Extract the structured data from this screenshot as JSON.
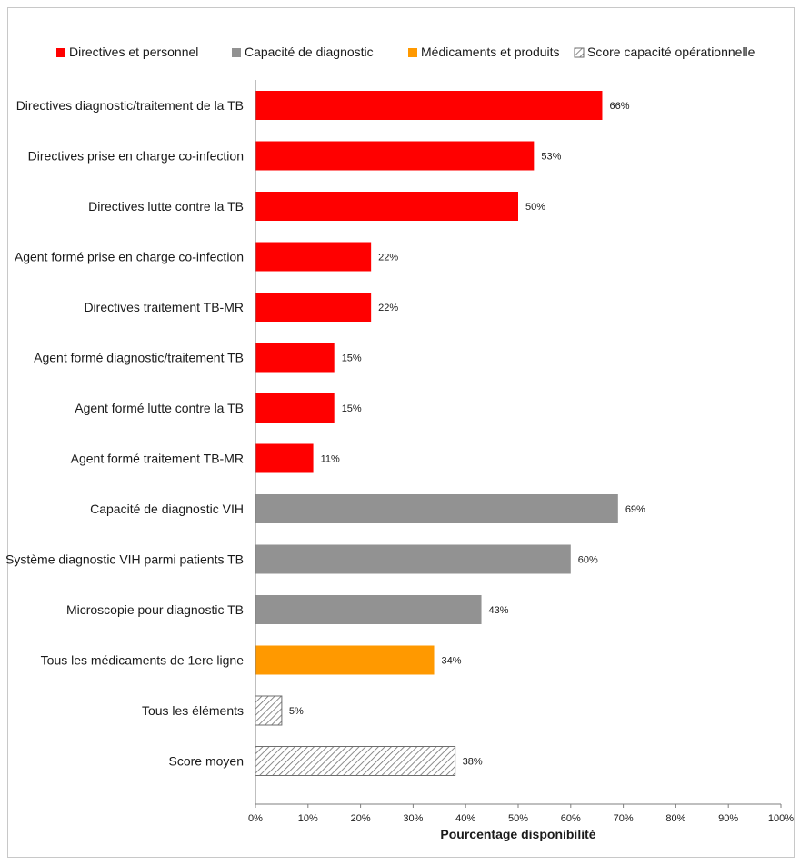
{
  "chart_data": {
    "type": "bar",
    "orientation": "horizontal",
    "xlabel": "Pourcentage disponibilité",
    "xlim": [
      0,
      100
    ],
    "x_ticks": [
      "0%",
      "10%",
      "20%",
      "30%",
      "40%",
      "50%",
      "60%",
      "70%",
      "80%",
      "90%",
      "100%"
    ],
    "legend_position": "top",
    "legend": [
      {
        "name": "Directives et personnel",
        "color": "#ff0000",
        "pattern": "solid"
      },
      {
        "name": "Capacité de diagnostic",
        "color": "#929292",
        "pattern": "solid"
      },
      {
        "name": "Médicaments et produits",
        "color": "#ff9900",
        "pattern": "solid"
      },
      {
        "name": "Score capacité opérationnelle",
        "color": "#ffffff",
        "pattern": "hatch"
      }
    ],
    "bars": [
      {
        "label": "Directives diagnostic/traitement de la TB",
        "value": 66,
        "value_label": "66%",
        "group": 0
      },
      {
        "label": "Directives prise en charge co-infection",
        "value": 53,
        "value_label": "53%",
        "group": 0
      },
      {
        "label": "Directives lutte contre la TB",
        "value": 50,
        "value_label": "50%",
        "group": 0
      },
      {
        "label": "Agent formé prise en charge co-infection",
        "value": 22,
        "value_label": "22%",
        "group": 0
      },
      {
        "label": "Directives traitement TB-MR",
        "value": 22,
        "value_label": "22%",
        "group": 0
      },
      {
        "label": "Agent formé diagnostic/traitement TB",
        "value": 15,
        "value_label": "15%",
        "group": 0
      },
      {
        "label": "Agent formé lutte contre la TB",
        "value": 15,
        "value_label": "15%",
        "group": 0
      },
      {
        "label": "Agent formé traitement TB-MR",
        "value": 11,
        "value_label": "11%",
        "group": 0
      },
      {
        "label": "Capacité de diagnostic VIH",
        "value": 69,
        "value_label": "69%",
        "group": 1
      },
      {
        "label": "Système diagnostic VIH parmi patients TB",
        "value": 60,
        "value_label": "60%",
        "group": 1
      },
      {
        "label": "Microscopie pour diagnostic TB",
        "value": 43,
        "value_label": "43%",
        "group": 1
      },
      {
        "label": "Tous les médicaments de 1ere ligne",
        "value": 34,
        "value_label": "34%",
        "group": 2
      },
      {
        "label": "Tous les éléments",
        "value": 5,
        "value_label": "5%",
        "group": 3
      },
      {
        "label": "Score moyen",
        "value": 38,
        "value_label": "38%",
        "group": 3
      }
    ]
  }
}
